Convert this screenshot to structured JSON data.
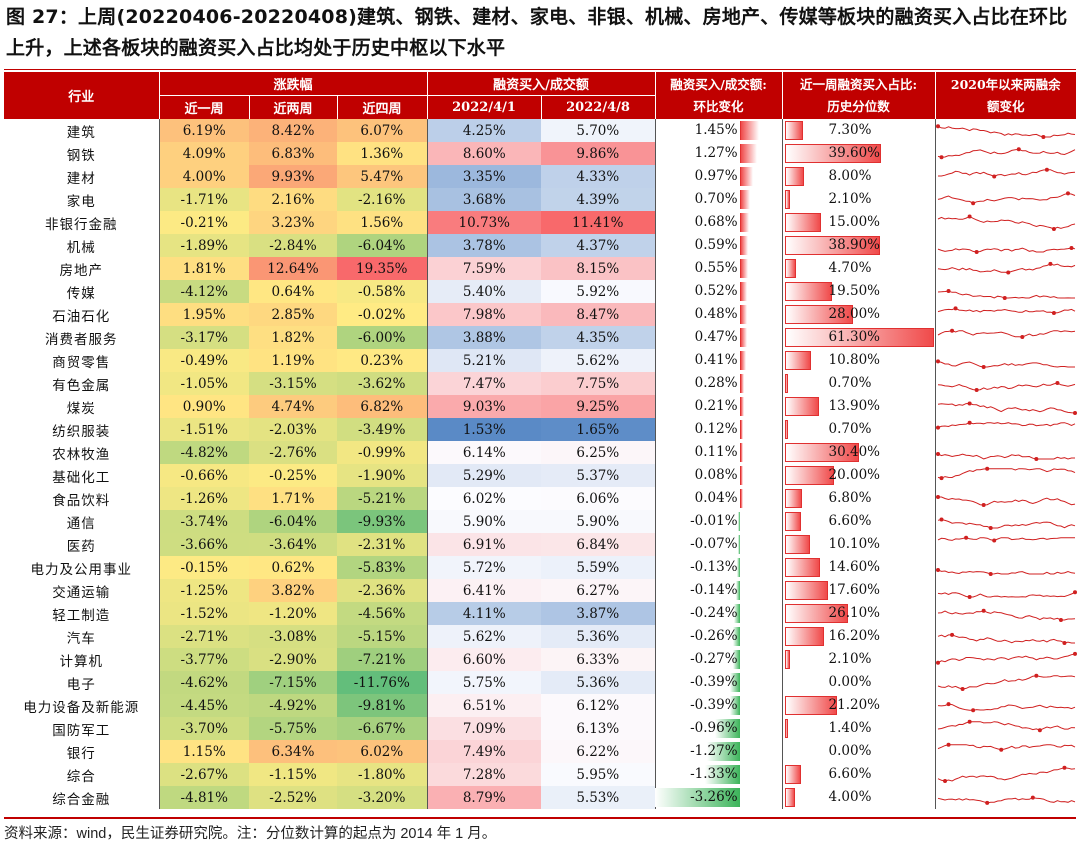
{
  "title": "图 27：上周(20220406-20220408)建筑、钢铁、建材、家电、非银、机械、房地产、传媒等板块的融资买入占比在环比上升，上述各板块的融资买入占比均处于历史中枢以下水平",
  "headers": {
    "industry": "行业",
    "change": "涨跌幅",
    "w1": "近一周",
    "w2": "近两周",
    "w4": "近四周",
    "ratio": "融资买入/成交额",
    "d1": "2022/4/1",
    "d2": "2022/4/8",
    "chg": "融资买入/成交额:环比变化",
    "pct": "近一周融资买入占比:历史分位数",
    "trend": "2020年以来两融余额变化"
  },
  "rows": [
    {
      "name": "建筑",
      "w1": "6.19%",
      "w2": "8.42%",
      "w4": "6.07%",
      "d1": "4.25%",
      "d2": "5.70%",
      "chg": "1.45%",
      "pct": "7.30%"
    },
    {
      "name": "钢铁",
      "w1": "4.09%",
      "w2": "6.83%",
      "w4": "1.36%",
      "d1": "8.60%",
      "d2": "9.86%",
      "chg": "1.27%",
      "pct": "39.60%"
    },
    {
      "name": "建材",
      "w1": "4.00%",
      "w2": "9.93%",
      "w4": "5.47%",
      "d1": "3.35%",
      "d2": "4.33%",
      "chg": "0.97%",
      "pct": "8.00%"
    },
    {
      "name": "家电",
      "w1": "-1.71%",
      "w2": "2.16%",
      "w4": "-2.16%",
      "d1": "3.68%",
      "d2": "4.39%",
      "chg": "0.70%",
      "pct": "2.10%"
    },
    {
      "name": "非银行金融",
      "w1": "-0.21%",
      "w2": "3.23%",
      "w4": "1.56%",
      "d1": "10.73%",
      "d2": "11.41%",
      "chg": "0.68%",
      "pct": "15.00%"
    },
    {
      "name": "机械",
      "w1": "-1.89%",
      "w2": "-2.84%",
      "w4": "-6.04%",
      "d1": "3.78%",
      "d2": "4.37%",
      "chg": "0.59%",
      "pct": "38.90%"
    },
    {
      "name": "房地产",
      "w1": "1.81%",
      "w2": "12.64%",
      "w4": "19.35%",
      "d1": "7.59%",
      "d2": "8.15%",
      "chg": "0.55%",
      "pct": "4.70%"
    },
    {
      "name": "传媒",
      "w1": "-4.12%",
      "w2": "0.64%",
      "w4": "-0.58%",
      "d1": "5.40%",
      "d2": "5.92%",
      "chg": "0.52%",
      "pct": "19.50%"
    },
    {
      "name": "石油石化",
      "w1": "1.95%",
      "w2": "2.85%",
      "w4": "-0.02%",
      "d1": "7.98%",
      "d2": "8.47%",
      "chg": "0.48%",
      "pct": "28.00%"
    },
    {
      "name": "消费者服务",
      "w1": "-3.17%",
      "w2": "1.82%",
      "w4": "-6.00%",
      "d1": "3.88%",
      "d2": "4.35%",
      "chg": "0.47%",
      "pct": "61.30%"
    },
    {
      "name": "商贸零售",
      "w1": "-0.49%",
      "w2": "1.19%",
      "w4": "0.23%",
      "d1": "5.21%",
      "d2": "5.62%",
      "chg": "0.41%",
      "pct": "10.80%"
    },
    {
      "name": "有色金属",
      "w1": "-1.05%",
      "w2": "-3.15%",
      "w4": "-3.62%",
      "d1": "7.47%",
      "d2": "7.75%",
      "chg": "0.28%",
      "pct": "0.70%"
    },
    {
      "name": "煤炭",
      "w1": "0.90%",
      "w2": "4.74%",
      "w4": "6.82%",
      "d1": "9.03%",
      "d2": "9.25%",
      "chg": "0.21%",
      "pct": "13.90%"
    },
    {
      "name": "纺织服装",
      "w1": "-1.51%",
      "w2": "-2.03%",
      "w4": "-3.49%",
      "d1": "1.53%",
      "d2": "1.65%",
      "chg": "0.12%",
      "pct": "0.70%"
    },
    {
      "name": "农林牧渔",
      "w1": "-4.82%",
      "w2": "-2.76%",
      "w4": "-0.99%",
      "d1": "6.14%",
      "d2": "6.25%",
      "chg": "0.11%",
      "pct": "30.40%"
    },
    {
      "name": "基础化工",
      "w1": "-0.66%",
      "w2": "-0.25%",
      "w4": "-1.90%",
      "d1": "5.29%",
      "d2": "5.37%",
      "chg": "0.08%",
      "pct": "20.00%"
    },
    {
      "name": "食品饮料",
      "w1": "-1.26%",
      "w2": "1.71%",
      "w4": "-5.21%",
      "d1": "6.02%",
      "d2": "6.06%",
      "chg": "0.04%",
      "pct": "6.80%"
    },
    {
      "name": "通信",
      "w1": "-3.74%",
      "w2": "-6.04%",
      "w4": "-9.93%",
      "d1": "5.90%",
      "d2": "5.90%",
      "chg": "-0.01%",
      "pct": "6.60%"
    },
    {
      "name": "医药",
      "w1": "-3.66%",
      "w2": "-3.64%",
      "w4": "-2.31%",
      "d1": "6.91%",
      "d2": "6.84%",
      "chg": "-0.07%",
      "pct": "10.10%"
    },
    {
      "name": "电力及公用事业",
      "w1": "-0.15%",
      "w2": "0.62%",
      "w4": "-5.83%",
      "d1": "5.72%",
      "d2": "5.59%",
      "chg": "-0.13%",
      "pct": "14.60%"
    },
    {
      "name": "交通运输",
      "w1": "-1.25%",
      "w2": "3.82%",
      "w4": "-2.36%",
      "d1": "6.41%",
      "d2": "6.27%",
      "chg": "-0.14%",
      "pct": "17.60%"
    },
    {
      "name": "轻工制造",
      "w1": "-1.52%",
      "w2": "-1.20%",
      "w4": "-4.56%",
      "d1": "4.11%",
      "d2": "3.87%",
      "chg": "-0.24%",
      "pct": "26.10%"
    },
    {
      "name": "汽车",
      "w1": "-2.71%",
      "w2": "-3.08%",
      "w4": "-5.15%",
      "d1": "5.62%",
      "d2": "5.36%",
      "chg": "-0.26%",
      "pct": "16.20%"
    },
    {
      "name": "计算机",
      "w1": "-3.77%",
      "w2": "-2.90%",
      "w4": "-7.21%",
      "d1": "6.60%",
      "d2": "6.33%",
      "chg": "-0.27%",
      "pct": "2.10%"
    },
    {
      "name": "电子",
      "w1": "-4.62%",
      "w2": "-7.15%",
      "w4": "-11.76%",
      "d1": "5.75%",
      "d2": "5.36%",
      "chg": "-0.39%",
      "pct": "0.00%"
    },
    {
      "name": "电力设备及新能源",
      "w1": "-4.45%",
      "w2": "-4.92%",
      "w4": "-9.81%",
      "d1": "6.51%",
      "d2": "6.12%",
      "chg": "-0.39%",
      "pct": "21.20%"
    },
    {
      "name": "国防军工",
      "w1": "-3.70%",
      "w2": "-5.75%",
      "w4": "-6.67%",
      "d1": "7.09%",
      "d2": "6.13%",
      "chg": "-0.96%",
      "pct": "1.40%"
    },
    {
      "name": "银行",
      "w1": "1.15%",
      "w2": "6.34%",
      "w4": "6.02%",
      "d1": "7.49%",
      "d2": "6.22%",
      "chg": "-1.27%",
      "pct": "0.00%"
    },
    {
      "name": "综合",
      "w1": "-2.67%",
      "w2": "-1.15%",
      "w4": "-1.80%",
      "d1": "7.28%",
      "d2": "5.95%",
      "chg": "-1.33%",
      "pct": "6.60%"
    },
    {
      "name": "综合金融",
      "w1": "-4.81%",
      "w2": "-2.52%",
      "w4": "-3.20%",
      "d1": "8.79%",
      "d2": "5.53%",
      "chg": "-3.26%",
      "pct": "4.00%"
    }
  ],
  "colors": {
    "header_bg": "#c00000",
    "pos_bar": "#f04a4a",
    "neg_bar": "#3cb45a",
    "sparkline": "#d02020"
  },
  "footer": "资料来源：wind，民生证券研究院。注：分位数计算的起点为 2014 年 1 月。"
}
